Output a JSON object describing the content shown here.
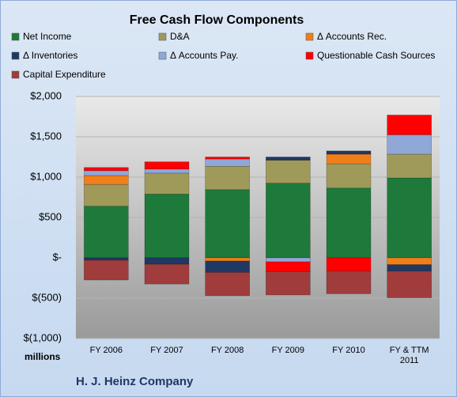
{
  "chart_data": {
    "type": "bar",
    "stacked": true,
    "title": "Free Cash Flow Components",
    "categories": [
      "FY 2006",
      "FY 2007",
      "FY 2008",
      "FY 2009",
      "FY 2010",
      "FY & TTM 2011"
    ],
    "series": [
      {
        "name": "Net Income",
        "color": "#1e7a3a",
        "values": [
          640,
          790,
          845,
          925,
          865,
          990
        ]
      },
      {
        "name": "D&A",
        "color": "#a09a5a",
        "values": [
          270,
          260,
          290,
          285,
          300,
          295
        ]
      },
      {
        "name": "Δ Accounts Rec.",
        "color": "#f07f1a",
        "values": [
          110,
          0,
          -40,
          0,
          120,
          -85
        ]
      },
      {
        "name": "Δ Inventories",
        "color": "#1f3864",
        "values": [
          -30,
          -80,
          -140,
          40,
          40,
          -80
        ]
      },
      {
        "name": "Δ Accounts Pay.",
        "color": "#8fa8d8",
        "values": [
          60,
          50,
          90,
          -50,
          0,
          240
        ]
      },
      {
        "name": "Questionable Cash Sources",
        "color": "#ff0000",
        "values": [
          40,
          90,
          25,
          -120,
          -165,
          245
        ]
      },
      {
        "name": "Capital Expenditure",
        "color": "#a03c3c",
        "values": [
          -245,
          -245,
          -290,
          -290,
          -280,
          -330
        ]
      }
    ],
    "ylim": [
      -1000,
      2000
    ],
    "yticks": [
      {
        "value": 2000,
        "label": "$2,000"
      },
      {
        "value": 1500,
        "label": "$1,500"
      },
      {
        "value": 1000,
        "label": "$1,000"
      },
      {
        "value": 500,
        "label": "$500"
      },
      {
        "value": 0,
        "label": "$-"
      },
      {
        "value": -500,
        "label": "$(500)"
      },
      {
        "value": -1000,
        "label": "$(1,000)"
      }
    ],
    "grid": true,
    "unit_label": "millions",
    "footer": "H. J. Heinz Company"
  }
}
